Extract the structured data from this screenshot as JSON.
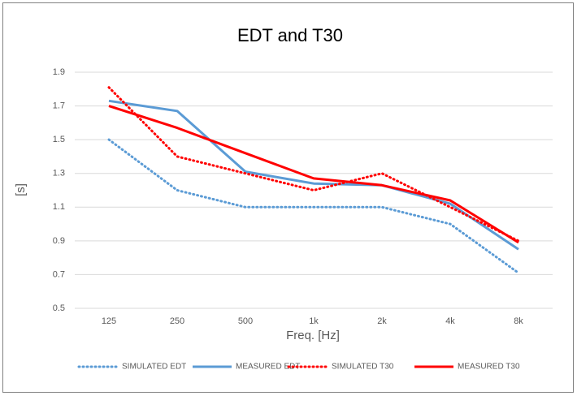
{
  "chart_data": {
    "type": "line",
    "title": "EDT and T30",
    "x_label": "Freq. [Hz]",
    "y_label": "[s]",
    "categories": [
      "125",
      "250",
      "500",
      "1k",
      "2k",
      "4k",
      "8k"
    ],
    "ylim": [
      0.5,
      1.9
    ],
    "yticks": [
      0.5,
      0.7,
      0.9,
      1.1,
      1.3,
      1.5,
      1.7,
      1.9
    ],
    "grid": true,
    "legend": "bottom",
    "series": [
      {
        "name": "SIMULATED EDT",
        "color": "#5b9bd5",
        "style": "dotted",
        "values": [
          1.5,
          1.2,
          1.1,
          1.1,
          1.1,
          1.0,
          0.71
        ]
      },
      {
        "name": "MEASURED EDT",
        "color": "#5b9bd5",
        "style": "solid",
        "values": [
          1.73,
          1.67,
          1.31,
          1.24,
          1.23,
          1.12,
          0.85
        ]
      },
      {
        "name": "SIMULATED T30",
        "color": "#ff0000",
        "style": "dotted",
        "values": [
          1.81,
          1.4,
          1.3,
          1.2,
          1.3,
          1.1,
          0.9
        ]
      },
      {
        "name": "MEASURED T30",
        "color": "#ff0000",
        "style": "solid",
        "values": [
          1.7,
          1.57,
          1.42,
          1.27,
          1.23,
          1.14,
          0.89
        ]
      }
    ]
  }
}
